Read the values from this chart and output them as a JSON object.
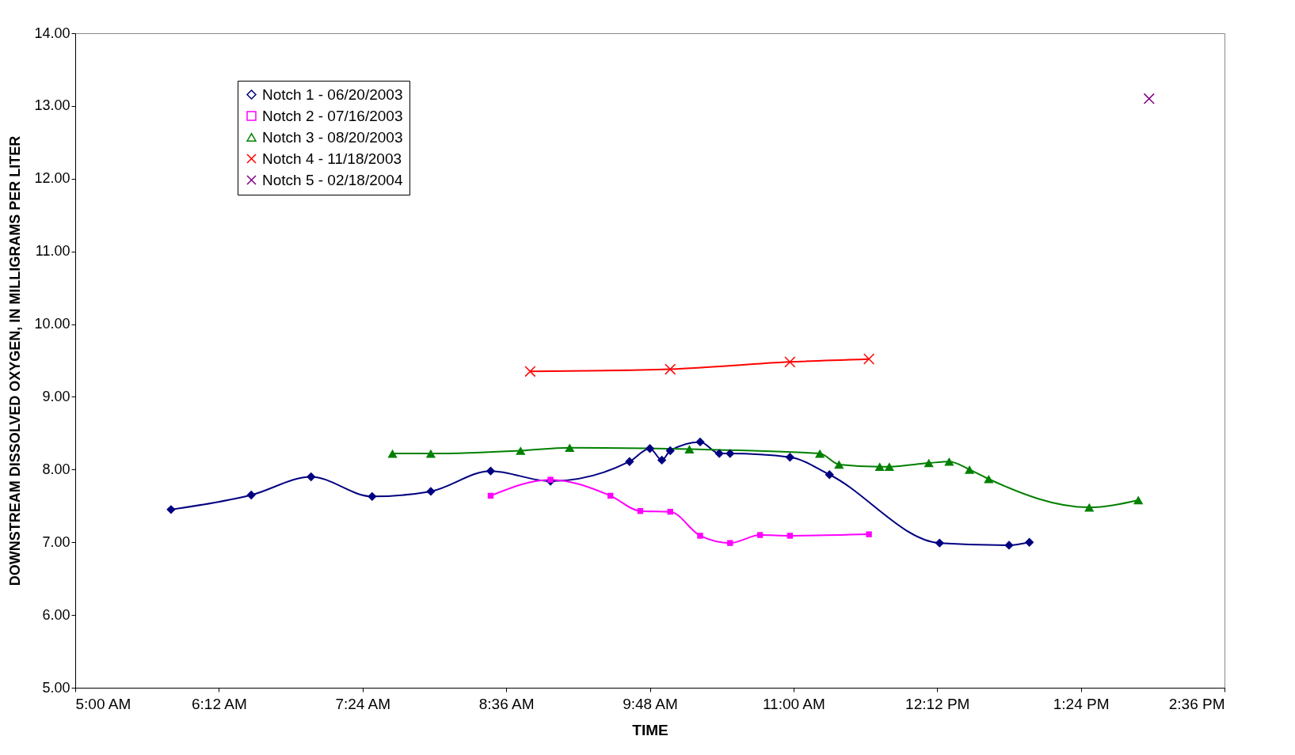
{
  "chart_data": {
    "type": "line",
    "xlabel": "TIME",
    "ylabel": "DOWNSTREAM DISSOLVED OXYGEN, IN MILLIGRAMS PER LITER",
    "xlim": [
      5,
      14.6
    ],
    "xticks": [
      {
        "value": 5,
        "label": "5:00 AM"
      },
      {
        "value": 6.2,
        "label": "6:12 AM"
      },
      {
        "value": 7.4,
        "label": "7:24 AM"
      },
      {
        "value": 8.6,
        "label": "8:36 AM"
      },
      {
        "value": 9.8,
        "label": "9:48 AM"
      },
      {
        "value": 11,
        "label": "11:00 AM"
      },
      {
        "value": 12.2,
        "label": "12:12 PM"
      },
      {
        "value": 13.4,
        "label": "1:24 PM"
      },
      {
        "value": 14.6,
        "label": "2:36 PM"
      }
    ],
    "ylim": [
      5,
      14
    ],
    "yticks": [
      {
        "value": 5,
        "label": "5.00"
      },
      {
        "value": 6,
        "label": "6.00"
      },
      {
        "value": 7,
        "label": "7.00"
      },
      {
        "value": 8,
        "label": "8.00"
      },
      {
        "value": 9,
        "label": "9.00"
      },
      {
        "value": 10,
        "label": "10.00"
      },
      {
        "value": 11,
        "label": "11.00"
      },
      {
        "value": 12,
        "label": "12.00"
      },
      {
        "value": 13,
        "label": "13.00"
      },
      {
        "value": 14,
        "label": "14.00"
      }
    ],
    "grid": false,
    "legend": "top left",
    "series": [
      {
        "name": "Notch 1 - 06/20/2003",
        "color": "#000080",
        "marker": "diamond",
        "x": [
          5.8,
          6.47,
          6.97,
          7.48,
          7.97,
          8.47,
          8.97,
          9.63,
          9.8,
          9.9,
          9.97,
          10.22,
          10.38,
          10.47,
          10.97,
          11.3,
          12.22,
          12.8,
          12.97
        ],
        "values": [
          7.45,
          7.65,
          7.9,
          7.63,
          7.7,
          7.98,
          7.84,
          8.11,
          8.29,
          8.13,
          8.26,
          8.38,
          8.22,
          8.22,
          8.17,
          7.93,
          6.99,
          6.96,
          7.0
        ]
      },
      {
        "name": "Notch 2 - 07/16/2003",
        "color": "#ff00ff",
        "marker": "square",
        "x": [
          8.47,
          8.97,
          9.47,
          9.72,
          9.97,
          10.22,
          10.47,
          10.72,
          10.97,
          11.63
        ],
        "values": [
          7.64,
          7.86,
          7.64,
          7.43,
          7.42,
          7.09,
          6.99,
          7.1,
          7.09,
          7.11
        ]
      },
      {
        "name": "Notch 3 - 08/20/2003",
        "color": "#008000",
        "marker": "triangle",
        "x": [
          7.65,
          7.97,
          8.72,
          9.13,
          10.13,
          11.22,
          11.38,
          11.72,
          11.8,
          12.13,
          12.3,
          12.47,
          12.63,
          13.47,
          13.88
        ],
        "values": [
          8.22,
          8.22,
          8.26,
          8.3,
          8.28,
          8.22,
          8.07,
          8.04,
          8.04,
          8.09,
          8.11,
          8.0,
          7.87,
          7.48,
          7.58
        ]
      },
      {
        "name": "Notch 4 - 11/18/2003",
        "color": "#ff0000",
        "marker": "cross",
        "x": [
          8.8,
          9.97,
          10.97,
          11.63
        ],
        "values": [
          9.35,
          9.38,
          9.48,
          9.52
        ]
      },
      {
        "name": "Notch 5 - 02/18/2004",
        "type": "scatter",
        "color": "#800080",
        "marker": "cross",
        "x": [
          13.97
        ],
        "values": [
          13.1
        ]
      }
    ]
  }
}
